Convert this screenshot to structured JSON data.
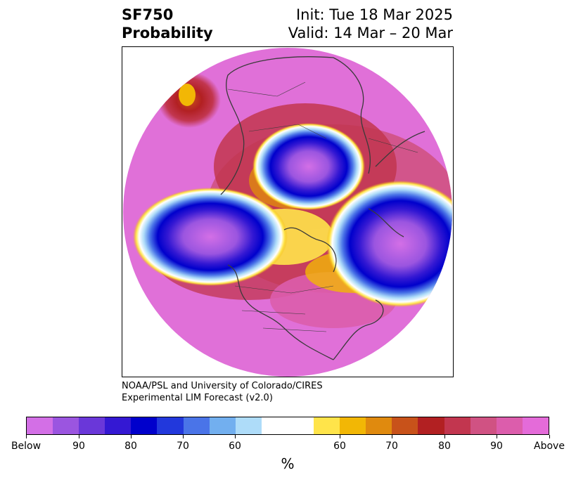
{
  "title": {
    "left_line1": "SF750",
    "left_line2": "Probability",
    "right_line1": "Init: Tue 18 Mar 2025",
    "right_line2": "Valid: 14 Mar – 20 Mar"
  },
  "credit": {
    "line1": "NOAA/PSL and University of Colorado/CIRES",
    "line2": "Experimental LIM Forecast (v2.0)"
  },
  "colorbar": {
    "unit": "%",
    "colors": [
      "#d36fe6",
      "#9b55e0",
      "#6a37d9",
      "#3418d3",
      "#0000cc",
      "#2238dc",
      "#4a74e8",
      "#72afef",
      "#aedcf9",
      "#ffffff",
      "#ffe44a",
      "#f2b705",
      "#e08a0e",
      "#c8521a",
      "#b22022",
      "#c2364f",
      "#d05283",
      "#dc5dac",
      "#e46bd9"
    ],
    "tick_labels": [
      "Below",
      "90",
      "80",
      "70",
      "60",
      "60",
      "70",
      "80",
      "90",
      "Above"
    ]
  },
  "map": {
    "region": "Northern Hemisphere polar projection",
    "background_color": "#e070d8",
    "features": [
      "below-normal anomaly over Greenland/Arctic Canada",
      "below-normal anomaly over Gulf of Alaska / North Pacific",
      "below-normal anomaly over Central Asia",
      "above-normal probability elsewhere"
    ]
  }
}
